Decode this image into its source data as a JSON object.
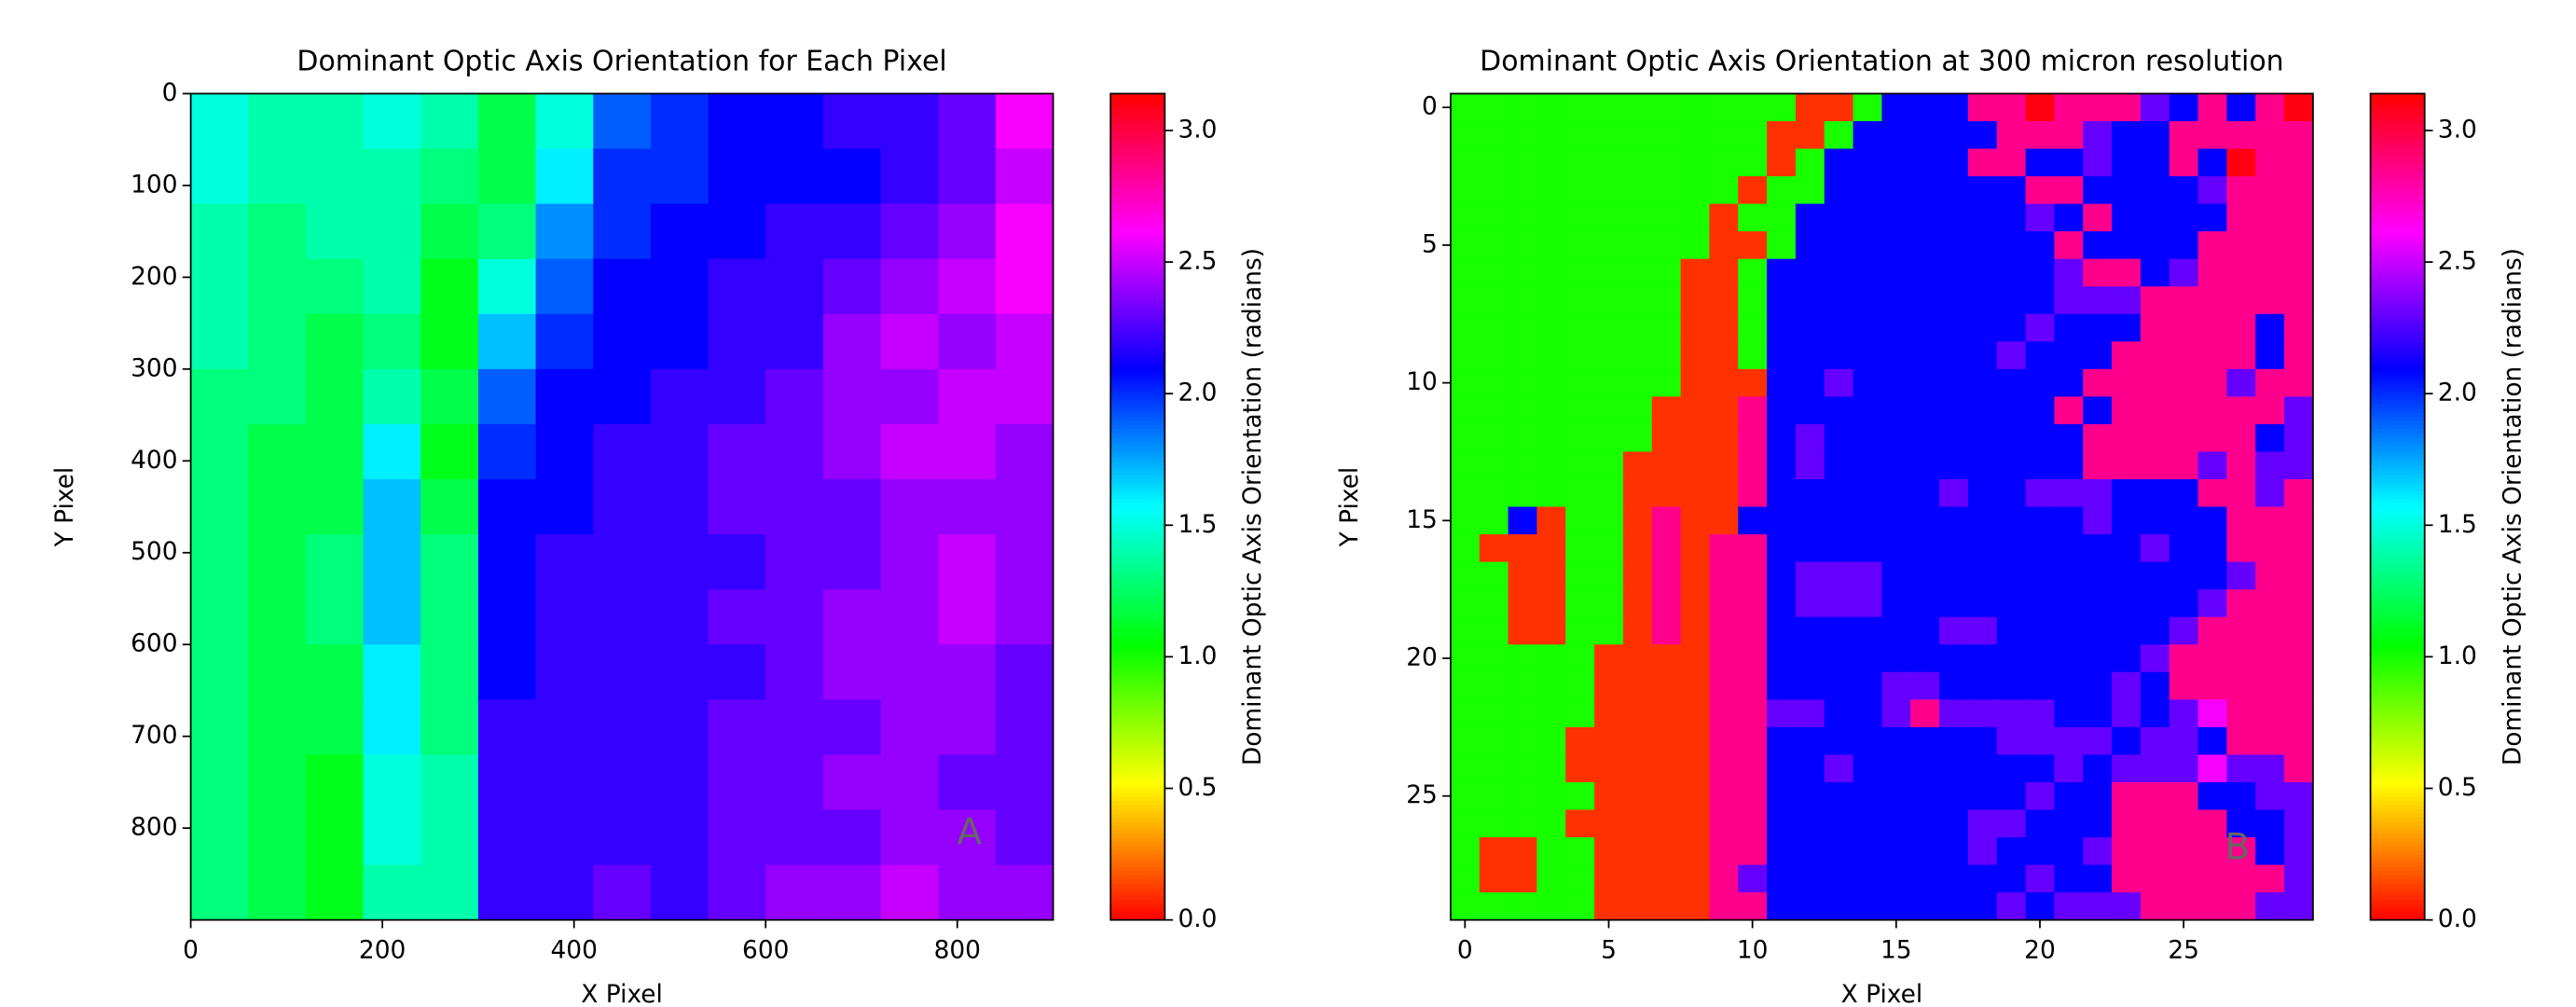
{
  "chart_data": [
    {
      "type": "heatmap",
      "title": "Dominant Optic Axis Orientation for Each Pixel",
      "x_label": "X Pixel",
      "y_label": "Y Pixel",
      "annotation": "A",
      "xlim": [
        0,
        900
      ],
      "ylim": [
        900,
        0
      ],
      "xticks": [
        0,
        200,
        400,
        600,
        800
      ],
      "yticks": [
        0,
        100,
        200,
        300,
        400,
        500,
        600,
        700,
        800
      ],
      "colormap": "hsv",
      "zlim": [
        0,
        3.14
      ],
      "colorbar": {
        "label": "Dominant Optic Axis Orientation (radians)",
        "ticks": [
          {
            "value": 0,
            "label": "0.0"
          },
          0.5,
          {
            "value": 1,
            "label": "1.0"
          },
          1.5,
          {
            "value": 2,
            "label": "2.0"
          },
          2.5,
          {
            "value": 3,
            "label": "3.0"
          }
        ]
      },
      "z": [
        [
          1.5,
          1.4,
          1.4,
          1.5,
          1.4,
          1.2,
          1.5,
          1.9,
          2.0,
          2.1,
          2.1,
          2.2,
          2.2,
          2.3,
          2.6
        ],
        [
          1.5,
          1.4,
          1.4,
          1.4,
          1.3,
          1.2,
          1.6,
          2.0,
          2.0,
          2.1,
          2.1,
          2.1,
          2.2,
          2.3,
          2.5
        ],
        [
          1.4,
          1.3,
          1.4,
          1.4,
          1.2,
          1.3,
          1.8,
          2.0,
          2.1,
          2.1,
          2.2,
          2.2,
          2.3,
          2.4,
          2.6
        ],
        [
          1.4,
          1.3,
          1.3,
          1.4,
          1.1,
          1.5,
          1.9,
          2.1,
          2.1,
          2.2,
          2.2,
          2.3,
          2.4,
          2.5,
          2.6
        ],
        [
          1.4,
          1.3,
          1.2,
          1.3,
          1.1,
          1.7,
          2.0,
          2.1,
          2.1,
          2.2,
          2.2,
          2.4,
          2.5,
          2.4,
          2.5
        ],
        [
          1.3,
          1.3,
          1.2,
          1.4,
          1.2,
          1.9,
          2.1,
          2.1,
          2.2,
          2.2,
          2.3,
          2.4,
          2.4,
          2.5,
          2.5
        ],
        [
          1.3,
          1.2,
          1.2,
          1.6,
          1.1,
          2.0,
          2.1,
          2.2,
          2.2,
          2.3,
          2.3,
          2.4,
          2.5,
          2.5,
          2.4
        ],
        [
          1.3,
          1.2,
          1.2,
          1.7,
          1.2,
          2.1,
          2.1,
          2.2,
          2.2,
          2.3,
          2.3,
          2.3,
          2.4,
          2.4,
          2.4
        ],
        [
          1.3,
          1.2,
          1.3,
          1.7,
          1.3,
          2.1,
          2.2,
          2.2,
          2.2,
          2.2,
          2.3,
          2.3,
          2.4,
          2.5,
          2.4
        ],
        [
          1.3,
          1.2,
          1.3,
          1.7,
          1.3,
          2.1,
          2.2,
          2.2,
          2.2,
          2.3,
          2.3,
          2.4,
          2.4,
          2.5,
          2.4
        ],
        [
          1.3,
          1.2,
          1.2,
          1.6,
          1.3,
          2.1,
          2.2,
          2.2,
          2.2,
          2.2,
          2.3,
          2.4,
          2.4,
          2.4,
          2.3
        ],
        [
          1.3,
          1.2,
          1.2,
          1.6,
          1.3,
          2.2,
          2.2,
          2.2,
          2.2,
          2.3,
          2.3,
          2.3,
          2.4,
          2.4,
          2.3
        ],
        [
          1.3,
          1.2,
          1.1,
          1.5,
          1.4,
          2.2,
          2.2,
          2.2,
          2.2,
          2.3,
          2.3,
          2.4,
          2.4,
          2.3,
          2.3
        ],
        [
          1.3,
          1.2,
          1.1,
          1.5,
          1.4,
          2.2,
          2.2,
          2.2,
          2.2,
          2.3,
          2.3,
          2.3,
          2.4,
          2.4,
          2.3
        ],
        [
          1.3,
          1.2,
          1.1,
          1.4,
          1.4,
          2.2,
          2.2,
          2.3,
          2.2,
          2.3,
          2.4,
          2.4,
          2.5,
          2.4,
          2.4
        ]
      ]
    },
    {
      "type": "heatmap",
      "title": "Dominant Optic Axis Orientation at 300 micron resolution",
      "x_label": "X Pixel",
      "y_label": "Y Pixel",
      "annotation": "B",
      "xlim": [
        -0.5,
        29.5
      ],
      "ylim": [
        29.5,
        -0.5
      ],
      "xticks": [
        0,
        5,
        10,
        15,
        20,
        25
      ],
      "yticks": [
        0,
        5,
        10,
        15,
        20,
        25
      ],
      "colormap": "hsv",
      "zlim": [
        0,
        3.14
      ],
      "colorbar": {
        "label": "Dominant Optic Axis Orientation (radians)",
        "ticks": [
          {
            "value": 0,
            "label": "0.0"
          },
          0.5,
          {
            "value": 1,
            "label": "1.0"
          },
          1.5,
          {
            "value": 2,
            "label": "2.0"
          },
          2.5,
          {
            "value": 3,
            "label": "3.0"
          }
        ]
      },
      "z": [
        [
          1,
          1,
          1,
          1,
          1,
          1,
          1,
          1,
          1,
          1,
          1,
          1,
          0.1,
          0.1,
          1,
          2.1,
          2.1,
          2.1,
          2.85,
          2.85,
          3.1,
          2.85,
          2.85,
          2.85,
          2.3,
          2.1,
          2.85,
          2.1,
          2.85,
          3.1
        ],
        [
          1,
          1,
          1,
          1,
          1,
          1,
          1,
          1,
          1,
          1,
          1,
          0.1,
          0.1,
          1,
          2.1,
          2.1,
          2.1,
          2.1,
          2.1,
          2.85,
          2.85,
          2.85,
          2.3,
          2.1,
          2.1,
          2.85,
          2.85,
          2.85,
          2.85,
          2.85
        ],
        [
          1,
          1,
          1,
          1,
          1,
          1,
          1,
          1,
          1,
          1,
          1,
          0.1,
          1,
          2.1,
          2.1,
          2.1,
          2.1,
          2.1,
          2.85,
          2.85,
          2.1,
          2.1,
          2.3,
          2.1,
          2.1,
          2.85,
          2.1,
          3.1,
          2.85,
          2.85
        ],
        [
          1,
          1,
          1,
          1,
          1,
          1,
          1,
          1,
          1,
          1,
          0.1,
          1,
          1,
          2.1,
          2.1,
          2.1,
          2.1,
          2.1,
          2.1,
          2.1,
          2.85,
          2.85,
          2.1,
          2.1,
          2.1,
          2.1,
          2.3,
          2.85,
          2.85,
          2.85
        ],
        [
          1,
          1,
          1,
          1,
          1,
          1,
          1,
          1,
          1,
          0.1,
          1,
          1,
          2.1,
          2.1,
          2.1,
          2.1,
          2.1,
          2.1,
          2.1,
          2.1,
          2.3,
          2.1,
          2.85,
          2.1,
          2.1,
          2.1,
          2.1,
          2.85,
          2.85,
          2.85
        ],
        [
          1,
          1,
          1,
          1,
          1,
          1,
          1,
          1,
          1,
          0.1,
          0.1,
          1,
          2.1,
          2.1,
          2.1,
          2.1,
          2.1,
          2.1,
          2.1,
          2.1,
          2.1,
          2.85,
          2.1,
          2.1,
          2.1,
          2.1,
          2.85,
          2.85,
          2.85,
          2.85
        ],
        [
          1,
          1,
          1,
          1,
          1,
          1,
          1,
          1,
          0.1,
          0.1,
          1,
          2.1,
          2.1,
          2.1,
          2.1,
          2.1,
          2.1,
          2.1,
          2.1,
          2.1,
          2.1,
          2.3,
          2.85,
          2.85,
          2.1,
          2.3,
          2.85,
          2.85,
          2.85,
          2.85
        ],
        [
          1,
          1,
          1,
          1,
          1,
          1,
          1,
          1,
          0.1,
          0.1,
          1,
          2.1,
          2.1,
          2.1,
          2.1,
          2.1,
          2.1,
          2.1,
          2.1,
          2.1,
          2.1,
          2.3,
          2.3,
          2.3,
          2.85,
          2.85,
          2.85,
          2.85,
          2.85,
          2.85
        ],
        [
          1,
          1,
          1,
          1,
          1,
          1,
          1,
          1,
          0.1,
          0.1,
          1,
          2.1,
          2.1,
          2.1,
          2.1,
          2.1,
          2.1,
          2.1,
          2.1,
          2.1,
          2.3,
          2.1,
          2.1,
          2.1,
          2.85,
          2.85,
          2.85,
          2.85,
          2.1,
          2.85
        ],
        [
          1,
          1,
          1,
          1,
          1,
          1,
          1,
          1,
          0.1,
          0.1,
          1,
          2.1,
          2.1,
          2.1,
          2.1,
          2.1,
          2.1,
          2.1,
          2.1,
          2.3,
          2.1,
          2.1,
          2.1,
          2.85,
          2.85,
          2.85,
          2.85,
          2.85,
          2.1,
          2.85
        ],
        [
          1,
          1,
          1,
          1,
          1,
          1,
          1,
          1,
          0.1,
          0.1,
          0.1,
          2.1,
          2.1,
          2.3,
          2.1,
          2.1,
          2.1,
          2.1,
          2.1,
          2.1,
          2.1,
          2.1,
          2.85,
          2.85,
          2.85,
          2.85,
          2.85,
          2.3,
          2.85,
          2.85
        ],
        [
          1,
          1,
          1,
          1,
          1,
          1,
          1,
          0.1,
          0.1,
          0.1,
          2.85,
          2.1,
          2.1,
          2.1,
          2.1,
          2.1,
          2.1,
          2.1,
          2.1,
          2.1,
          2.1,
          2.85,
          2.1,
          2.85,
          2.85,
          2.85,
          2.85,
          2.85,
          2.85,
          2.3
        ],
        [
          1,
          1,
          1,
          1,
          1,
          1,
          1,
          0.1,
          0.1,
          0.1,
          2.85,
          2.1,
          2.3,
          2.1,
          2.1,
          2.1,
          2.1,
          2.1,
          2.1,
          2.1,
          2.1,
          2.1,
          2.85,
          2.85,
          2.85,
          2.85,
          2.85,
          2.85,
          2.1,
          2.3
        ],
        [
          1,
          1,
          1,
          1,
          1,
          1,
          0.1,
          0.1,
          0.1,
          0.1,
          2.85,
          2.1,
          2.3,
          2.1,
          2.1,
          2.1,
          2.1,
          2.1,
          2.1,
          2.1,
          2.1,
          2.1,
          2.85,
          2.85,
          2.85,
          2.85,
          2.3,
          2.85,
          2.3,
          2.3
        ],
        [
          1,
          1,
          1,
          1,
          1,
          1,
          0.1,
          0.1,
          0.1,
          0.1,
          2.85,
          2.1,
          2.1,
          2.1,
          2.1,
          2.1,
          2.1,
          2.3,
          2.1,
          2.1,
          2.3,
          2.3,
          2.3,
          2.1,
          2.1,
          2.1,
          2.85,
          2.85,
          2.3,
          2.85
        ],
        [
          1,
          1,
          2.1,
          0.1,
          1,
          1,
          0.1,
          2.85,
          0.1,
          0.1,
          2.1,
          2.1,
          2.1,
          2.1,
          2.1,
          2.1,
          2.1,
          2.1,
          2.1,
          2.1,
          2.1,
          2.1,
          2.3,
          2.1,
          2.1,
          2.1,
          2.1,
          2.85,
          2.85,
          2.85
        ],
        [
          1,
          0.1,
          0.1,
          0.1,
          1,
          1,
          0.1,
          2.85,
          0.1,
          2.85,
          2.85,
          2.1,
          2.1,
          2.1,
          2.1,
          2.1,
          2.1,
          2.1,
          2.1,
          2.1,
          2.1,
          2.1,
          2.1,
          2.1,
          2.3,
          2.1,
          2.1,
          2.85,
          2.85,
          2.85
        ],
        [
          1,
          1,
          0.1,
          0.1,
          1,
          1,
          0.1,
          2.85,
          0.1,
          2.85,
          2.85,
          2.1,
          2.3,
          2.3,
          2.3,
          2.1,
          2.1,
          2.1,
          2.1,
          2.1,
          2.1,
          2.1,
          2.1,
          2.1,
          2.1,
          2.1,
          2.1,
          2.3,
          2.85,
          2.85
        ],
        [
          1,
          1,
          0.1,
          0.1,
          1,
          1,
          0.1,
          2.85,
          0.1,
          2.85,
          2.85,
          2.1,
          2.3,
          2.3,
          2.3,
          2.1,
          2.1,
          2.1,
          2.1,
          2.1,
          2.1,
          2.1,
          2.1,
          2.1,
          2.1,
          2.1,
          2.3,
          2.85,
          2.85,
          2.85
        ],
        [
          1,
          1,
          0.1,
          0.1,
          1,
          1,
          0.1,
          2.85,
          0.1,
          2.85,
          2.85,
          2.1,
          2.1,
          2.1,
          2.1,
          2.1,
          2.1,
          2.3,
          2.3,
          2.1,
          2.1,
          2.1,
          2.1,
          2.1,
          2.1,
          2.3,
          2.85,
          2.85,
          2.85,
          2.85
        ],
        [
          1,
          1,
          1,
          1,
          1,
          0.1,
          0.1,
          0.1,
          0.1,
          2.85,
          2.85,
          2.1,
          2.1,
          2.1,
          2.1,
          2.1,
          2.1,
          2.1,
          2.1,
          2.1,
          2.1,
          2.1,
          2.1,
          2.1,
          2.3,
          2.85,
          2.85,
          2.85,
          2.85,
          2.85
        ],
        [
          1,
          1,
          1,
          1,
          1,
          0.1,
          0.1,
          0.1,
          0.1,
          2.85,
          2.85,
          2.1,
          2.1,
          2.1,
          2.1,
          2.3,
          2.3,
          2.1,
          2.1,
          2.1,
          2.1,
          2.1,
          2.1,
          2.3,
          2.1,
          2.85,
          2.85,
          2.85,
          2.85,
          2.85
        ],
        [
          1,
          1,
          1,
          1,
          1,
          0.1,
          0.1,
          0.1,
          0.1,
          2.85,
          2.85,
          2.3,
          2.3,
          2.1,
          2.1,
          2.3,
          2.85,
          2.3,
          2.3,
          2.3,
          2.3,
          2.1,
          2.1,
          2.3,
          2.1,
          2.3,
          2.6,
          2.85,
          2.85,
          2.85
        ],
        [
          1,
          1,
          1,
          1,
          0.1,
          0.1,
          0.1,
          0.1,
          0.1,
          2.85,
          2.85,
          2.1,
          2.1,
          2.1,
          2.1,
          2.1,
          2.1,
          2.1,
          2.1,
          2.3,
          2.3,
          2.3,
          2.3,
          2.1,
          2.3,
          2.3,
          2.1,
          2.85,
          2.85,
          2.85
        ],
        [
          1,
          1,
          1,
          1,
          0.1,
          0.1,
          0.1,
          0.1,
          0.1,
          2.85,
          2.85,
          2.1,
          2.1,
          2.3,
          2.1,
          2.1,
          2.1,
          2.1,
          2.1,
          2.1,
          2.1,
          2.3,
          2.1,
          2.3,
          2.3,
          2.3,
          2.6,
          2.3,
          2.3,
          2.85
        ],
        [
          1,
          1,
          1,
          1,
          1,
          0.1,
          0.1,
          0.1,
          0.1,
          2.85,
          2.85,
          2.1,
          2.1,
          2.1,
          2.1,
          2.1,
          2.1,
          2.1,
          2.1,
          2.1,
          2.3,
          2.1,
          2.1,
          2.85,
          2.85,
          2.85,
          2.1,
          2.1,
          2.3,
          2.3
        ],
        [
          1,
          1,
          1,
          1,
          0.1,
          0.1,
          0.1,
          0.1,
          0.1,
          2.85,
          2.85,
          2.1,
          2.1,
          2.1,
          2.1,
          2.1,
          2.1,
          2.1,
          2.3,
          2.3,
          2.1,
          2.1,
          2.1,
          2.85,
          2.85,
          2.85,
          2.85,
          2.1,
          2.1,
          2.3
        ],
        [
          1,
          0.1,
          0.1,
          1,
          1,
          0.1,
          0.1,
          0.1,
          0.1,
          2.85,
          2.85,
          2.1,
          2.1,
          2.1,
          2.1,
          2.1,
          2.1,
          2.1,
          2.3,
          2.1,
          2.1,
          2.1,
          2.3,
          2.85,
          2.85,
          2.85,
          2.85,
          2.85,
          2.1,
          2.3
        ],
        [
          1,
          0.1,
          0.1,
          1,
          1,
          0.1,
          0.1,
          0.1,
          0.1,
          2.85,
          2.3,
          2.1,
          2.1,
          2.1,
          2.1,
          2.1,
          2.1,
          2.1,
          2.1,
          2.1,
          2.3,
          2.1,
          2.1,
          2.85,
          2.85,
          2.85,
          2.85,
          2.85,
          2.85,
          2.3
        ],
        [
          1,
          1,
          1,
          1,
          1,
          0.1,
          0.1,
          0.1,
          0.1,
          2.85,
          2.85,
          2.1,
          2.1,
          2.1,
          2.1,
          2.1,
          2.1,
          2.1,
          2.1,
          2.3,
          2.1,
          2.3,
          2.3,
          2.3,
          2.85,
          2.85,
          2.85,
          2.85,
          2.3,
          2.3
        ]
      ]
    }
  ]
}
